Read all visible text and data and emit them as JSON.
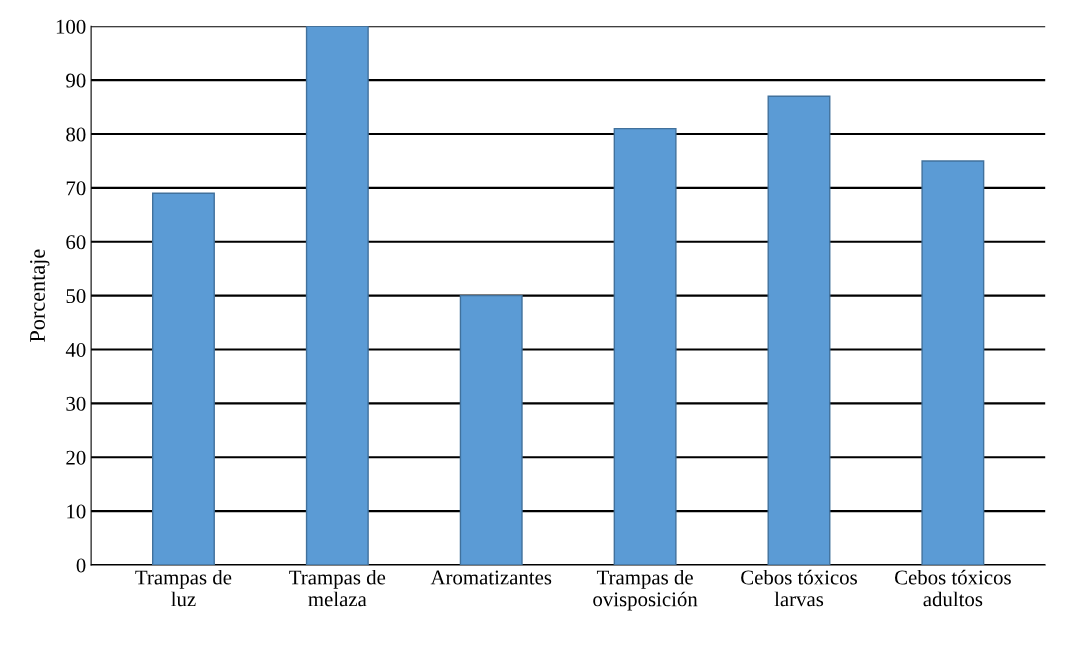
{
  "chart_data": {
    "type": "bar",
    "ylabel": "Porcentaje",
    "categories": [
      "Trampas de\nluz",
      "Trampas de\nmelaza",
      "Aromatizantes",
      "Trampas de\novisposición",
      "Cebos tóxicos\nlarvas",
      "Cebos tóxicos\nadultos"
    ],
    "values": [
      69,
      100,
      50,
      81,
      87,
      75
    ],
    "color": "#5b9bd5",
    "ylim": [
      0,
      100
    ],
    "yticks": [
      0,
      10,
      20,
      30,
      40,
      50,
      60,
      70,
      80,
      90,
      100
    ],
    "grid": "y"
  }
}
